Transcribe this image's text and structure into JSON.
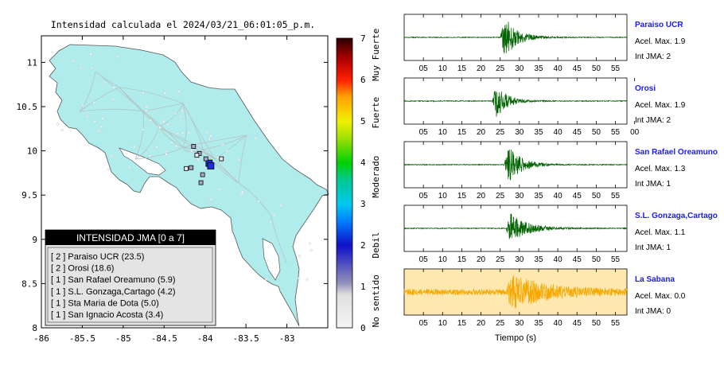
{
  "title": "Intensidad calculada el 2024/03/21_06:01:05_p.m.",
  "map": {
    "x_ticks": [
      "-86",
      "-85.5",
      "-85",
      "-84.5",
      "-84",
      "-83.5",
      "-83"
    ],
    "y_ticks": [
      "11",
      "10.5",
      "10",
      "9.5",
      "9",
      "8.5",
      "8"
    ],
    "lon_range": [
      -86,
      -82.5
    ],
    "lat_range": [
      8,
      11.3
    ],
    "colors": {
      "land": "#b0ecec",
      "sea": "#ffffff",
      "coast": "#444444"
    },
    "stations": [
      {
        "lon": -83.95,
        "lat": 9.86,
        "int": 2
      },
      {
        "lon": -83.93,
        "lat": 9.83,
        "int": 2
      },
      {
        "lon": -84.07,
        "lat": 9.97,
        "int": 1
      },
      {
        "lon": -83.99,
        "lat": 9.91,
        "int": 1
      },
      {
        "lon": -84.14,
        "lat": 10.05,
        "int": 1
      },
      {
        "lon": -84.17,
        "lat": 9.81,
        "int": 1
      },
      {
        "lon": -84.03,
        "lat": 9.73,
        "int": 1
      },
      {
        "lon": -84.05,
        "lat": 9.64,
        "int": 1
      },
      {
        "lon": -83.8,
        "lat": 9.91,
        "int": 0
      },
      {
        "lon": -84.23,
        "lat": 9.8,
        "int": 0
      },
      {
        "lon": -84.1,
        "lat": 9.95,
        "int": 0
      }
    ]
  },
  "colorbar": {
    "ticks": [
      "0",
      "1",
      "2",
      "3",
      "4",
      "5",
      "6",
      "7"
    ],
    "labels": [
      "No sentido",
      "Debil",
      "Moderado",
      "Fuerte",
      "Muy Fuerte"
    ]
  },
  "legend": {
    "header": "INTENSIDAD JMA [0 a 7]",
    "entries": [
      "[ 2 ] Paraiso UCR (23.5)",
      "[ 2 ] Orosi (18.6)",
      "[ 1 ] San Rafael Oreamuno (5.9)",
      "[ 1 ] S.L. Gonzaga,Cartago (4.2)",
      "[ 1 ] Sta Maria de Dota (5.0)",
      "[ 1 ] San Ignacio Acosta (3.4)"
    ]
  },
  "chart_data": [
    {
      "type": "scatter",
      "title": "Intensidad calculada el 2024/03/21_06:01:05_p.m.",
      "xlim": [
        -86,
        -82.5
      ],
      "ylim": [
        8,
        11.3
      ],
      "colorbar": {
        "range": [
          0,
          7
        ]
      }
    },
    {
      "type": "line",
      "xlabel": "Tiempo (s)",
      "series": [
        {
          "name": "Paraiso UCR",
          "color": "#006400",
          "onset": 25,
          "peak_amp": 1.0,
          "decay": 3.2,
          "tick_labels": [
            "05",
            "10",
            "15",
            "20",
            "25",
            "30",
            "35",
            "40",
            "45",
            "50",
            "55"
          ],
          "accel_label": "Acel. Max. 1.9",
          "jma_label": "Int JMA: 2"
        },
        {
          "name": "Orosi",
          "color": "#006400",
          "onset": 22.8,
          "peak_amp": 0.75,
          "decay": 3.0,
          "tick_labels": [
            "05",
            "10",
            "15",
            "20",
            "25",
            "30",
            "35",
            "40",
            "45",
            "50",
            "55",
            "00"
          ],
          "accel_label": "Acel. Max. 1.9",
          "jma_label": "Int JMA: 2"
        },
        {
          "name": "San Rafael Oreamuno",
          "color": "#006400",
          "onset": 26,
          "peak_amp": 0.85,
          "decay": 3.5,
          "tick_labels": [
            "05",
            "10",
            "15",
            "20",
            "25",
            "30",
            "35",
            "40",
            "45",
            "50",
            "55"
          ],
          "accel_label": "Acel. Max. 1.3",
          "jma_label": "Int JMA: 1"
        },
        {
          "name": "S.L. Gonzaga,Cartago",
          "color": "#006400",
          "onset": 26.5,
          "peak_amp": 0.7,
          "decay": 4.5,
          "tick_labels": [
            "05",
            "10",
            "15",
            "20",
            "25",
            "30",
            "35",
            "40",
            "45",
            "50",
            "55"
          ],
          "accel_label": "Acel. Max. 1.1",
          "jma_label": "Int JMA: 1"
        },
        {
          "name": "La Sabana",
          "color": "#f5a800",
          "onset": 26.5,
          "peak_amp": 0.75,
          "decay": 9,
          "tick_labels": [
            "05",
            "10",
            "15",
            "20",
            "25",
            "30",
            "35",
            "40",
            "45",
            "50",
            "55"
          ],
          "accel_label": "Acel. Max. 0.0",
          "jma_label": "Int JMA: 0"
        }
      ]
    }
  ]
}
